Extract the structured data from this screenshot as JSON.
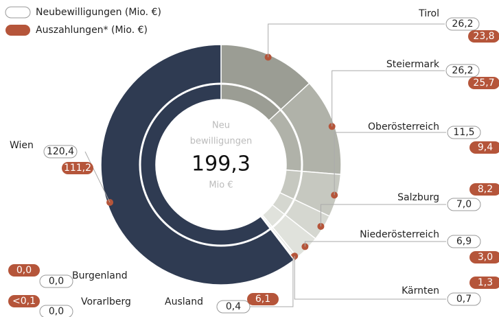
{
  "chart_data": {
    "type": "donut",
    "center": {
      "line1": "Neu",
      "line2": "bewilligungen",
      "total": "199,3",
      "unit": "Mio €"
    },
    "categories": [
      "Tirol",
      "Steiermark",
      "Oberösterreich",
      "Salzburg",
      "Niederösterreich",
      "Kärnten",
      "Ausland",
      "Vorarlberg",
      "Burgenland",
      "Wien"
    ],
    "colors": [
      "#9b9d94",
      "#b0b2a9",
      "#c6c8c0",
      "#d5d7d0",
      "#e0e2dc",
      "#e9eae5",
      "#eeefea",
      "#eeefea",
      "#eeefea",
      "#2f3b52"
    ],
    "series": [
      {
        "name": "Neubewilligungen (Mio. €)",
        "color": "#ffffff",
        "values": [
          26.2,
          26.2,
          11.5,
          7.0,
          6.9,
          0.7,
          0.4,
          0.0,
          0.0,
          120.4
        ],
        "value_labels": [
          "26,2",
          "26,2",
          "11,5",
          "7,0",
          "6,9",
          "0,7",
          "0,4",
          "0,0",
          "0,0",
          "120,4"
        ]
      },
      {
        "name": "Auszahlungen* (Mio. €)",
        "color": "#b5553a",
        "values": [
          23.8,
          25.7,
          9.4,
          8.2,
          3.0,
          1.3,
          6.1,
          0.05,
          0.0,
          111.2
        ],
        "value_labels": [
          "23,8",
          "25,7",
          "9,4",
          "8,2",
          "3,0",
          "1,3",
          "6,1",
          "<0,1",
          "0,0",
          "111,2"
        ]
      }
    ]
  }
}
